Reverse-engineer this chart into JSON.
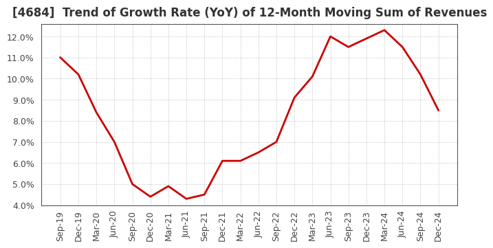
{
  "title": "[4684]  Trend of Growth Rate (YoY) of 12-Month Moving Sum of Revenues",
  "x_labels": [
    "Sep-19",
    "Dec-19",
    "Mar-20",
    "Jun-20",
    "Sep-20",
    "Dec-20",
    "Mar-21",
    "Jun-21",
    "Sep-21",
    "Dec-21",
    "Mar-22",
    "Jun-22",
    "Sep-22",
    "Dec-22",
    "Mar-23",
    "Jun-23",
    "Sep-23",
    "Dec-23",
    "Mar-24",
    "Jun-24",
    "Sep-24",
    "Dec-24"
  ],
  "y_values": [
    11.0,
    10.2,
    8.4,
    7.0,
    5.0,
    4.4,
    4.9,
    4.3,
    4.5,
    6.1,
    6.1,
    6.5,
    7.0,
    9.1,
    10.1,
    12.0,
    11.5,
    11.9,
    12.3,
    11.5,
    10.2,
    8.5
  ],
  "ylim_min": 4.0,
  "ylim_max": 12.6,
  "yticks": [
    4.0,
    5.0,
    6.0,
    7.0,
    8.0,
    9.0,
    10.0,
    11.0,
    12.0
  ],
  "line_color": "#cc0000",
  "line_width": 2.0,
  "background_color": "#ffffff",
  "grid_color": "#bbbbbb",
  "title_fontsize": 12,
  "tick_fontsize": 9,
  "title_color": "#333333",
  "tick_color": "#444444",
  "spine_color": "#555555"
}
